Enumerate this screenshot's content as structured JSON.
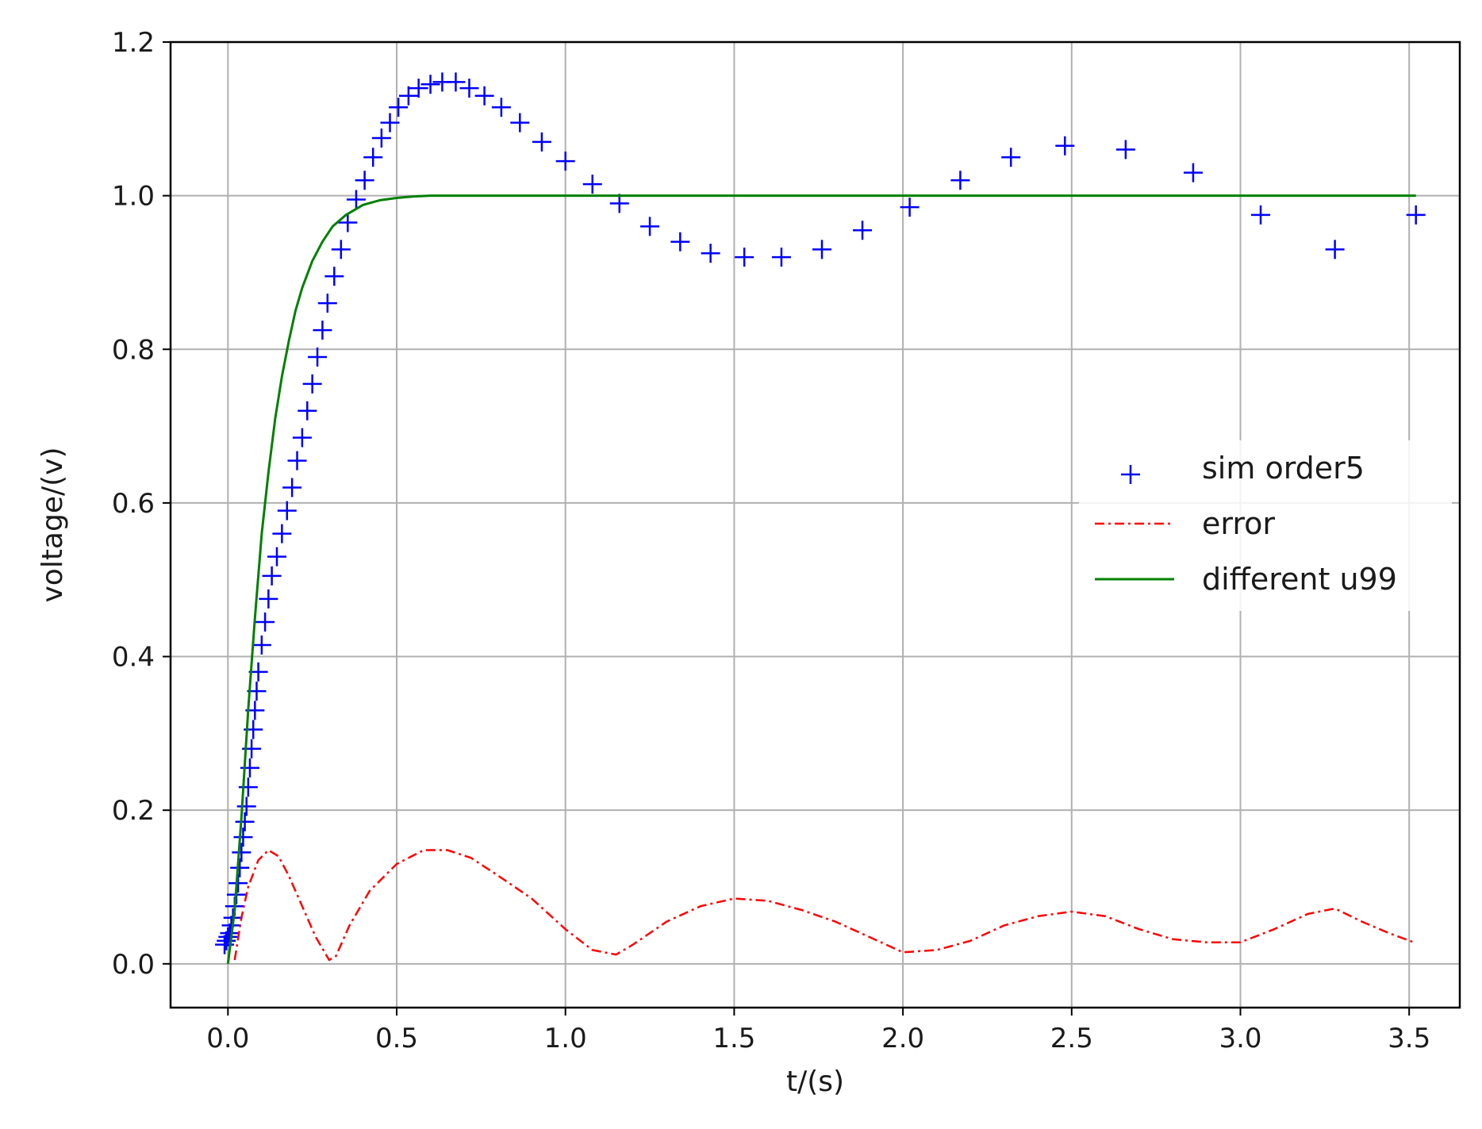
{
  "chart_data": {
    "type": "line",
    "title": "",
    "xlabel": "t/(s)",
    "ylabel": "voltage/(v)",
    "xlim": [
      -0.17,
      3.65
    ],
    "ylim": [
      -0.057,
      1.2
    ],
    "xticks": [
      0.0,
      0.5,
      1.0,
      1.5,
      2.0,
      2.5,
      3.0,
      3.5
    ],
    "xtick_labels": [
      "0.0",
      "0.5",
      "1.0",
      "1.5",
      "2.0",
      "2.5",
      "3.0",
      "3.5"
    ],
    "yticks": [
      0.0,
      0.2,
      0.4,
      0.6,
      0.8,
      1.0,
      1.2
    ],
    "ytick_labels": [
      "0.0",
      "0.2",
      "0.4",
      "0.6",
      "0.8",
      "1.0",
      "1.2"
    ],
    "grid": true,
    "legend_position": "center-right",
    "series": [
      {
        "name": "sim order5",
        "kind": "scatter",
        "marker": "plus",
        "color": "#0000ff",
        "x": [
          -0.01,
          -0.005,
          0.0,
          0.005,
          0.01,
          0.015,
          0.02,
          0.025,
          0.03,
          0.035,
          0.04,
          0.045,
          0.05,
          0.055,
          0.06,
          0.065,
          0.07,
          0.075,
          0.08,
          0.085,
          0.09,
          0.1,
          0.11,
          0.12,
          0.13,
          0.145,
          0.16,
          0.175,
          0.19,
          0.205,
          0.22,
          0.235,
          0.25,
          0.265,
          0.28,
          0.295,
          0.315,
          0.335,
          0.355,
          0.38,
          0.405,
          0.43,
          0.455,
          0.48,
          0.505,
          0.535,
          0.565,
          0.6,
          0.635,
          0.675,
          0.715,
          0.76,
          0.81,
          0.865,
          0.93,
          1.0,
          1.08,
          1.16,
          1.25,
          1.34,
          1.43,
          1.53,
          1.64,
          1.76,
          1.88,
          2.02,
          2.17,
          2.32,
          2.48,
          2.66,
          2.86,
          3.06,
          3.28,
          3.52
        ],
        "values": [
          0.025,
          0.03,
          0.035,
          0.04,
          0.05,
          0.06,
          0.075,
          0.09,
          0.105,
          0.125,
          0.145,
          0.165,
          0.185,
          0.205,
          0.23,
          0.255,
          0.28,
          0.305,
          0.33,
          0.355,
          0.38,
          0.415,
          0.445,
          0.475,
          0.505,
          0.53,
          0.56,
          0.59,
          0.62,
          0.655,
          0.685,
          0.72,
          0.755,
          0.79,
          0.825,
          0.86,
          0.895,
          0.93,
          0.965,
          0.995,
          1.02,
          1.05,
          1.075,
          1.095,
          1.115,
          1.13,
          1.14,
          1.145,
          1.148,
          1.148,
          1.14,
          1.13,
          1.115,
          1.095,
          1.07,
          1.045,
          1.015,
          0.99,
          0.96,
          0.94,
          0.925,
          0.92,
          0.92,
          0.93,
          0.955,
          0.985,
          1.02,
          1.05,
          1.065,
          1.06,
          1.03,
          0.975,
          0.93,
          0.975
        ]
      },
      {
        "name": "error",
        "kind": "line",
        "style": "dashdot",
        "color": "#ff0000",
        "x": [
          0.02,
          0.04,
          0.06,
          0.09,
          0.12,
          0.15,
          0.18,
          0.22,
          0.26,
          0.3,
          0.32,
          0.36,
          0.42,
          0.5,
          0.58,
          0.65,
          0.72,
          0.8,
          0.9,
          1.0,
          1.08,
          1.15,
          1.2,
          1.3,
          1.4,
          1.5,
          1.6,
          1.7,
          1.8,
          1.9,
          2.0,
          2.1,
          2.2,
          2.3,
          2.4,
          2.5,
          2.6,
          2.7,
          2.8,
          2.9,
          3.0,
          3.1,
          3.2,
          3.28,
          3.36,
          3.44,
          3.52
        ],
        "values": [
          0.005,
          0.06,
          0.1,
          0.135,
          0.148,
          0.14,
          0.115,
          0.075,
          0.035,
          0.005,
          0.01,
          0.05,
          0.095,
          0.13,
          0.148,
          0.148,
          0.138,
          0.115,
          0.085,
          0.045,
          0.018,
          0.012,
          0.025,
          0.055,
          0.075,
          0.085,
          0.082,
          0.07,
          0.055,
          0.035,
          0.015,
          0.018,
          0.03,
          0.05,
          0.062,
          0.068,
          0.062,
          0.045,
          0.032,
          0.028,
          0.028,
          0.045,
          0.065,
          0.072,
          0.055,
          0.04,
          0.027
        ]
      },
      {
        "name": "different u99",
        "kind": "line",
        "style": "solid",
        "color": "#008000",
        "x": [
          0.0,
          0.02,
          0.04,
          0.06,
          0.08,
          0.1,
          0.12,
          0.14,
          0.16,
          0.18,
          0.2,
          0.22,
          0.25,
          0.28,
          0.31,
          0.35,
          0.4,
          0.45,
          0.5,
          0.55,
          0.6,
          0.7,
          0.8,
          1.0,
          1.5,
          2.0,
          2.5,
          3.0,
          3.52
        ],
        "values": [
          0.0,
          0.07,
          0.19,
          0.33,
          0.45,
          0.56,
          0.64,
          0.71,
          0.765,
          0.81,
          0.85,
          0.88,
          0.915,
          0.94,
          0.96,
          0.975,
          0.988,
          0.994,
          0.997,
          0.999,
          1.0,
          1.0,
          1.0,
          1.0,
          1.0,
          1.0,
          1.0,
          1.0,
          1.0
        ]
      }
    ]
  }
}
